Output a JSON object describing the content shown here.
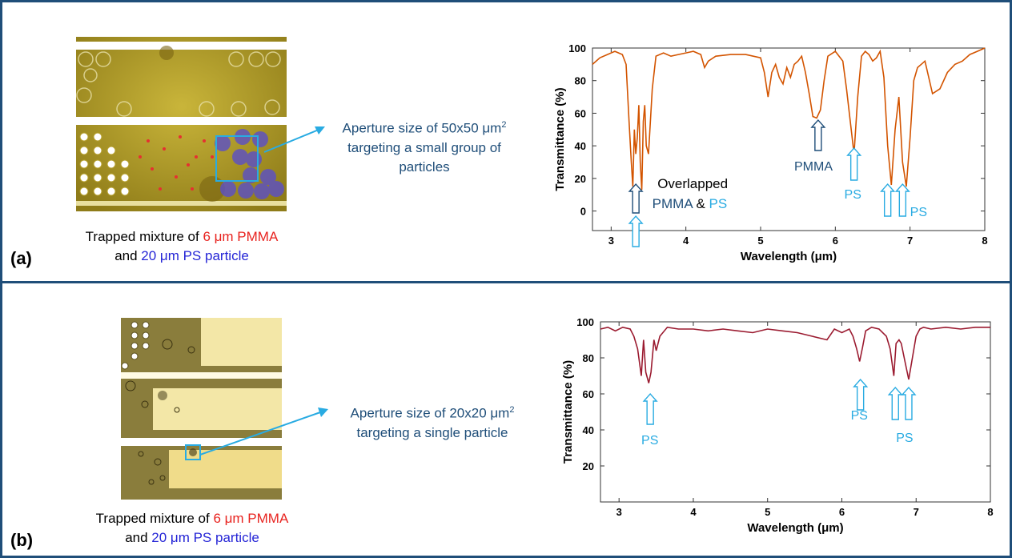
{
  "panels": [
    {
      "label": "(a)",
      "caption": {
        "line1_pre": "Trapped mixture of ",
        "line1_red": "6 μm PMMA",
        "line2_pre": "and ",
        "line2_blue": "20 μm PS particle"
      },
      "aperture_text": {
        "line1_pre": "Aperture size of 50x50 μm",
        "sup": "2",
        "line2": "targeting a small group of",
        "line3": "particles"
      },
      "chart_data": {
        "type": "line",
        "title": "",
        "xlabel": "Wavelength (μm)",
        "ylabel": "Transmittance (%)",
        "xlim": [
          2.75,
          8
        ],
        "ylim": [
          -12,
          100
        ],
        "xticks": [
          "3",
          "4",
          "5",
          "6",
          "7",
          "8"
        ],
        "yticks": [
          "0",
          "20",
          "40",
          "60",
          "80",
          "100"
        ],
        "color": "#d35400",
        "x": [
          2.75,
          2.85,
          2.95,
          3.05,
          3.15,
          3.2,
          3.24,
          3.27,
          3.29,
          3.31,
          3.33,
          3.35,
          3.37,
          3.39,
          3.41,
          3.43,
          3.45,
          3.47,
          3.5,
          3.55,
          3.6,
          3.7,
          3.8,
          3.9,
          4.0,
          4.1,
          4.2,
          4.25,
          4.3,
          4.4,
          4.6,
          4.8,
          5.0,
          5.05,
          5.1,
          5.15,
          5.2,
          5.25,
          5.3,
          5.35,
          5.4,
          5.45,
          5.5,
          5.55,
          5.6,
          5.65,
          5.7,
          5.75,
          5.8,
          5.85,
          5.9,
          6.0,
          6.1,
          6.15,
          6.2,
          6.25,
          6.3,
          6.35,
          6.4,
          6.45,
          6.5,
          6.55,
          6.6,
          6.65,
          6.7,
          6.75,
          6.8,
          6.85,
          6.9,
          6.95,
          7.0,
          7.05,
          7.1,
          7.2,
          7.3,
          7.4,
          7.5,
          7.6,
          7.7,
          7.8,
          7.9,
          8.0
        ],
        "y": [
          90,
          94,
          96,
          98,
          96,
          90,
          55,
          30,
          15,
          50,
          35,
          45,
          65,
          30,
          13,
          55,
          65,
          40,
          35,
          75,
          95,
          97,
          95,
          96,
          97,
          98,
          96,
          88,
          92,
          95,
          96,
          96,
          94,
          85,
          70,
          85,
          90,
          82,
          78,
          88,
          82,
          90,
          92,
          95,
          85,
          72,
          58,
          57,
          62,
          80,
          95,
          98,
          92,
          75,
          55,
          35,
          70,
          95,
          98,
          96,
          92,
          94,
          98,
          82,
          40,
          16,
          50,
          70,
          30,
          15,
          45,
          80,
          88,
          92,
          72,
          75,
          85,
          90,
          92,
          96,
          98,
          100
        ]
      },
      "annotations": {
        "overlapped": "Overlapped",
        "pmma_ps_pmma": "PMMA",
        "pmma_ps_amp": " & ",
        "pmma_ps_ps": "PS",
        "pmma": "PMMA",
        "ps1": "PS",
        "ps2": "PS"
      }
    },
    {
      "label": "(b)",
      "caption": {
        "line1_pre": "Trapped mixture of ",
        "line1_red": "6 μm PMMA",
        "line2_pre": "and ",
        "line2_blue": "20 μm PS particle"
      },
      "aperture_text": {
        "line1_pre": "Aperture size of 20x20 μm",
        "sup": "2",
        "line2": "targeting a single particle"
      },
      "chart_data": {
        "type": "line",
        "title": "",
        "xlabel": "Wavelength (μm)",
        "ylabel": "Transmittance (%)",
        "xlim": [
          2.75,
          8
        ],
        "ylim": [
          0,
          100
        ],
        "xticks": [
          "3",
          "4",
          "5",
          "6",
          "7",
          "8"
        ],
        "yticks": [
          "20",
          "40",
          "60",
          "80",
          "100"
        ],
        "color": "#9b1b30",
        "x": [
          2.75,
          2.85,
          2.95,
          3.05,
          3.15,
          3.2,
          3.25,
          3.3,
          3.33,
          3.36,
          3.4,
          3.43,
          3.47,
          3.5,
          3.55,
          3.65,
          3.8,
          4.0,
          4.2,
          4.4,
          4.6,
          4.8,
          5.0,
          5.2,
          5.4,
          5.6,
          5.8,
          5.9,
          6.0,
          6.1,
          6.15,
          6.2,
          6.24,
          6.28,
          6.32,
          6.4,
          6.5,
          6.6,
          6.65,
          6.7,
          6.73,
          6.77,
          6.8,
          6.85,
          6.9,
          6.95,
          7.0,
          7.05,
          7.1,
          7.2,
          7.4,
          7.6,
          7.8,
          8.0
        ],
        "y": [
          96,
          97,
          95,
          97,
          96,
          92,
          85,
          70,
          90,
          72,
          66,
          72,
          90,
          84,
          92,
          97,
          96,
          96,
          95,
          96,
          95,
          94,
          96,
          95,
          94,
          92,
          90,
          96,
          94,
          96,
          92,
          85,
          78,
          86,
          95,
          97,
          96,
          92,
          85,
          70,
          88,
          90,
          88,
          78,
          68,
          80,
          92,
          96,
          97,
          96,
          97,
          96,
          97,
          97
        ]
      },
      "annotations": {
        "ps0": "PS",
        "ps1": "PS",
        "ps2": "PS"
      }
    }
  ],
  "colors": {
    "frame": "#1f4e79",
    "arrow_dark": "#1f4e79",
    "arrow_light": "#29abe2",
    "callout_line": "#29abe2"
  }
}
